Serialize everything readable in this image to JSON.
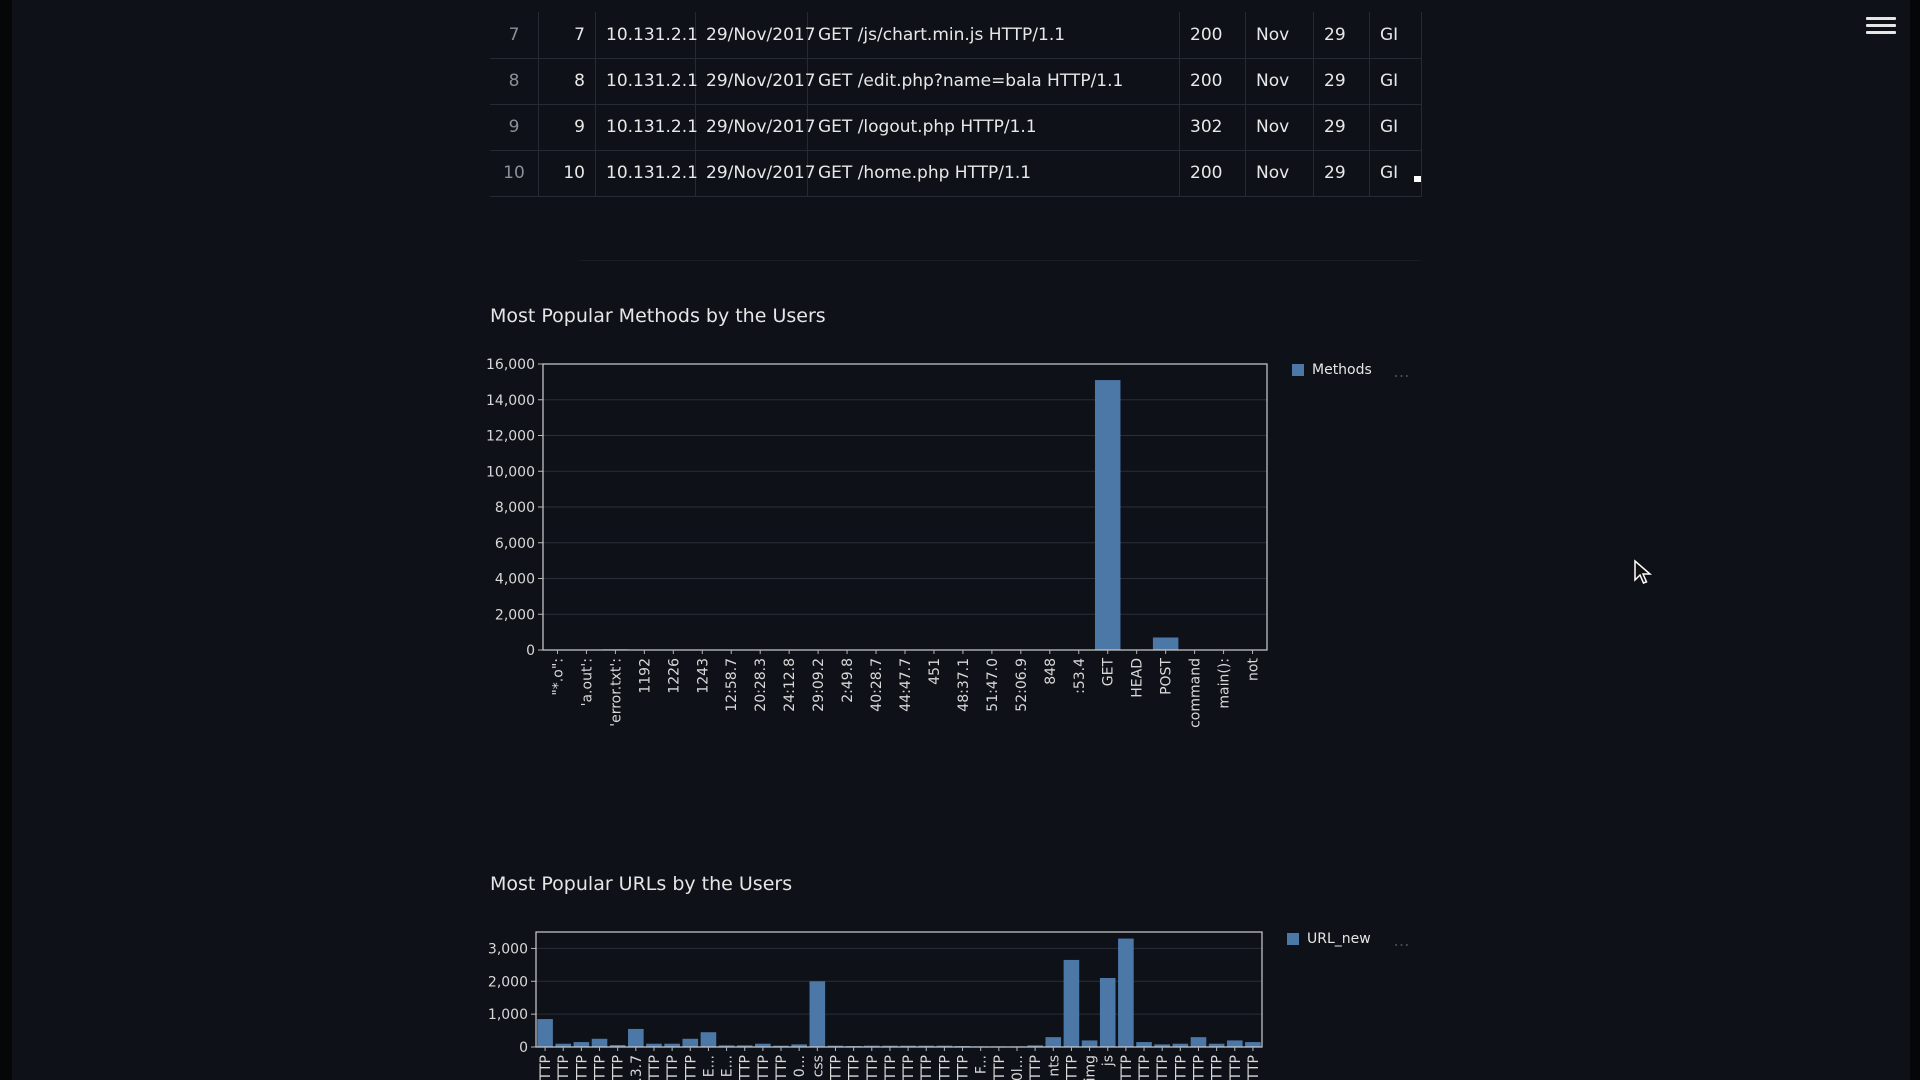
{
  "menu": {
    "icon": "hamburger-menu-icon"
  },
  "table": {
    "rows": [
      {
        "index": "7",
        "num": "7",
        "ip": "10.131.2.1",
        "date": "29/Nov/2017",
        "request": "GET /js/chart.min.js HTTP/1.1",
        "status": "200",
        "month": "Nov",
        "day": "29",
        "method": "GI"
      },
      {
        "index": "8",
        "num": "8",
        "ip": "10.131.2.1",
        "date": "29/Nov/2017",
        "request": "GET /edit.php?name=bala HTTP/1.1",
        "status": "200",
        "month": "Nov",
        "day": "29",
        "method": "GI"
      },
      {
        "index": "9",
        "num": "9",
        "ip": "10.131.2.1",
        "date": "29/Nov/2017",
        "request": "GET /logout.php HTTP/1.1",
        "status": "302",
        "month": "Nov",
        "day": "29",
        "method": "GI"
      },
      {
        "index": "10",
        "num": "10",
        "ip": "10.131.2.1",
        "date": "29/Nov/2017",
        "request": "GET /home.php HTTP/1.1",
        "status": "200",
        "month": "Nov",
        "day": "29",
        "method": "GI"
      }
    ]
  },
  "methods_chart": {
    "title": "Most Popular Methods by the Users",
    "legend": "Methods",
    "more": "…"
  },
  "urls_chart": {
    "title": "Most Popular URLs by the Users",
    "legend": "URL_new",
    "more": "…"
  },
  "colors": {
    "bar": "#4c78a8",
    "grid": "#2a2e37",
    "axis": "#b5b5b5",
    "background": "#0e1117"
  },
  "chart_data": [
    {
      "type": "bar",
      "title": "Most Popular Methods by the Users",
      "legend": "Methods",
      "ylim": [
        0,
        16000
      ],
      "yticks": [
        0,
        2000,
        4000,
        6000,
        8000,
        10000,
        12000,
        14000,
        16000
      ],
      "ytick_labels": [
        "0",
        "2,000",
        "4,000",
        "6,000",
        "8,000",
        "10,000",
        "12,000",
        "14,000",
        "16,000"
      ],
      "categories": [
        "\"*.o\":",
        "'a.out':",
        "'error.txt':",
        "1192",
        "1226",
        "1243",
        "12:58.7",
        "20:28.3",
        "24:12.8",
        "29:09.2",
        "2:49.8",
        "40:28.7",
        "44:47.7",
        "451",
        "48:37.1",
        "51:47.0",
        "52:06.9",
        "848",
        ":53.4",
        "GET",
        "HEAD",
        "POST",
        "command",
        "main():",
        "not"
      ],
      "values": [
        10,
        10,
        40,
        5,
        5,
        5,
        5,
        5,
        5,
        5,
        5,
        5,
        5,
        5,
        5,
        5,
        5,
        5,
        5,
        15100,
        10,
        700,
        5,
        5,
        5
      ]
    },
    {
      "type": "bar",
      "title": "Most Popular URLs by the Users",
      "legend": "URL_new",
      "ylim": [
        0,
        3500
      ],
      "yticks": [
        0,
        1000,
        2000,
        3000
      ],
      "ytick_labels": [
        "0",
        "1,000",
        "2,000",
        "3,000"
      ],
      "categories": [
        "TTP",
        "TTP",
        "TTP",
        "TTP",
        "TTP",
        ".3.7",
        "TTP",
        "TTP",
        "TTP",
        "E...",
        "E...",
        "TTP",
        "TTP",
        "TTP",
        "0...",
        "css",
        "TTP",
        "TTP",
        "TTP",
        "TTP",
        "TTP",
        "TTP",
        "TTP",
        "TTP",
        "F...",
        "TTP",
        "0l...",
        "TTP",
        "nts",
        "TTP",
        "img",
        "js",
        "TTP",
        "TTP",
        "TTP",
        "TTP",
        "TTP",
        "TTP",
        "TTP",
        "TTP"
      ],
      "values": [
        850,
        100,
        150,
        250,
        60,
        550,
        100,
        100,
        250,
        450,
        50,
        50,
        100,
        40,
        80,
        2000,
        40,
        30,
        40,
        40,
        40,
        40,
        40,
        30,
        20,
        20,
        20,
        50,
        300,
        2650,
        200,
        2100,
        3300,
        150,
        80,
        100,
        300,
        100,
        200,
        150
      ]
    }
  ]
}
